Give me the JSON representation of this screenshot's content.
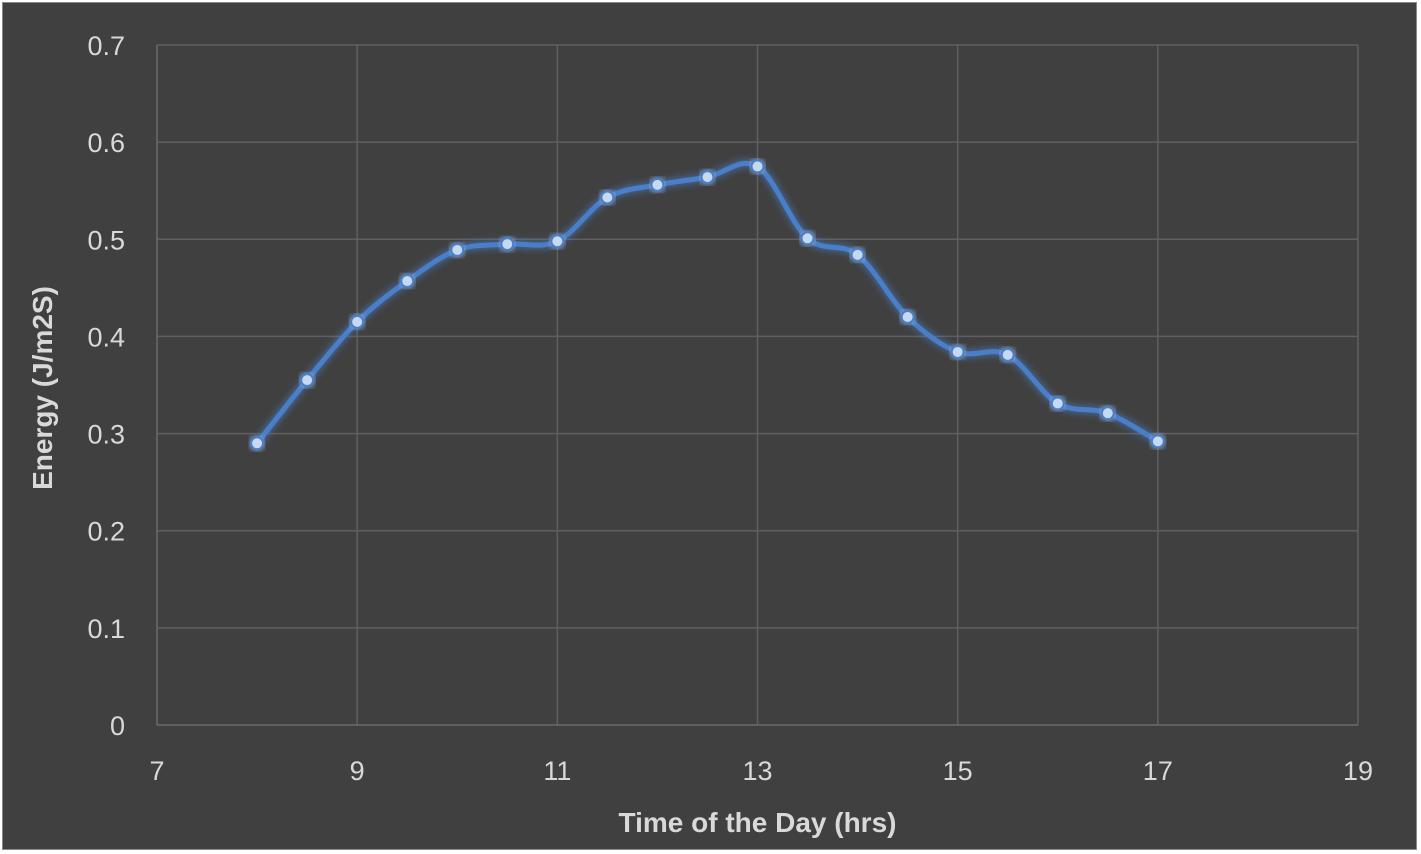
{
  "chart_data": {
    "type": "line",
    "title": "",
    "xlabel": "Time of the Day (hrs)",
    "ylabel": "Energy (J/m2S)",
    "xlim": [
      7,
      19
    ],
    "ylim": [
      0,
      0.7
    ],
    "xticks": [
      7,
      9,
      11,
      13,
      15,
      17,
      19
    ],
    "yticks": [
      0,
      0.1,
      0.2,
      0.3,
      0.4,
      0.5,
      0.6,
      0.7
    ],
    "xtick_labels": [
      "7",
      "9",
      "11",
      "13",
      "15",
      "17",
      "19"
    ],
    "ytick_labels": [
      "0",
      "0.1",
      "0.2",
      "0.3",
      "0.4",
      "0.5",
      "0.6",
      "0.7"
    ],
    "grid": true,
    "legend": "none",
    "smooth": true,
    "series": [
      {
        "color": "#4a7ec9",
        "marker_color": "#c6d9f1",
        "x": [
          8,
          8.5,
          9,
          9.5,
          10,
          10.5,
          11,
          11.5,
          12,
          12.5,
          13,
          13.5,
          14,
          14.5,
          15,
          15.5,
          16,
          16.5,
          17
        ],
        "y": [
          0.29,
          0.355,
          0.415,
          0.457,
          0.489,
          0.495,
          0.498,
          0.543,
          0.556,
          0.564,
          0.575,
          0.501,
          0.484,
          0.42,
          0.384,
          0.381,
          0.331,
          0.321,
          0.292
        ]
      }
    ]
  }
}
